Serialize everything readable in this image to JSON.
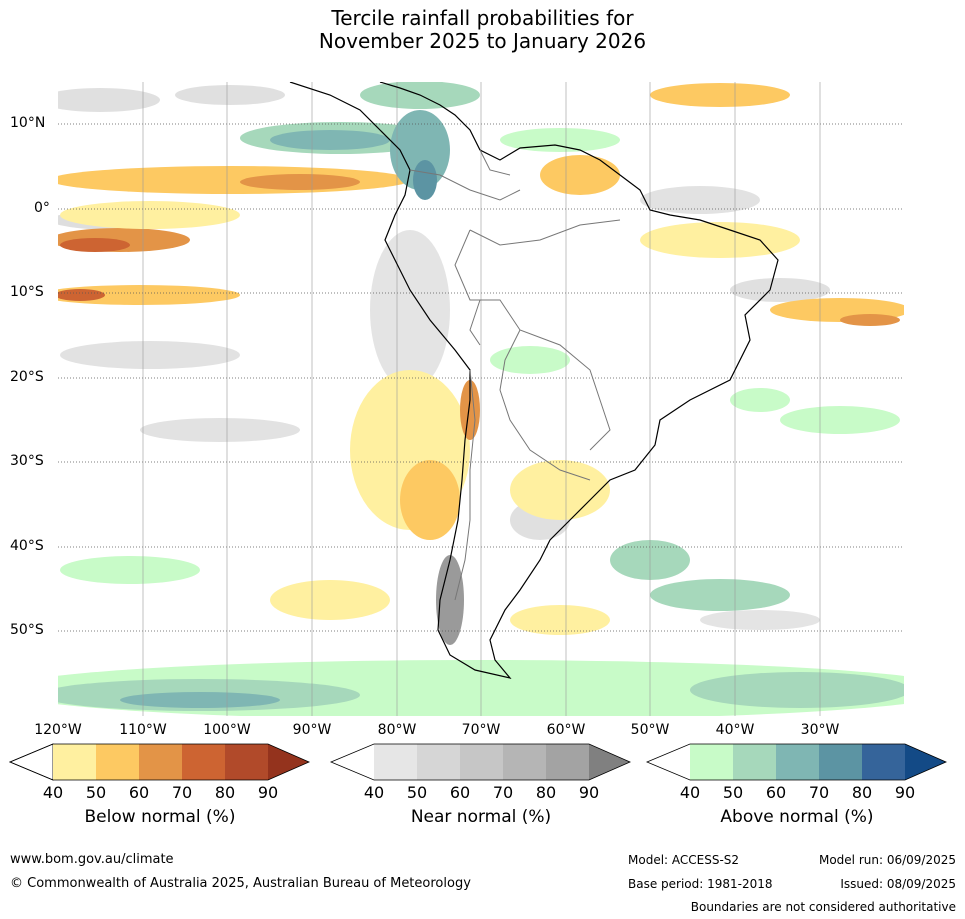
{
  "title_line1": "Tercile rainfall probabilities for",
  "title_line2": "November 2025 to January 2026",
  "longitude_labels": [
    "120°W",
    "110°W",
    "100°W",
    "90°W",
    "80°W",
    "70°W",
    "60°W",
    "50°W",
    "40°W",
    "30°W"
  ],
  "latitude_labels": [
    "10°N",
    "0°",
    "10°S",
    "20°S",
    "30°S",
    "40°S",
    "50°S"
  ],
  "colorbars": [
    {
      "label": "Below normal (%)",
      "ticks": [
        "40",
        "50",
        "60",
        "70",
        "80",
        "90"
      ],
      "colors": [
        "#fff0a0",
        "#fdc962",
        "#e39447",
        "#cd6432",
        "#b14a2a",
        "#94331d"
      ]
    },
    {
      "label": "Near normal (%)",
      "ticks": [
        "40",
        "50",
        "60",
        "70",
        "80",
        "90"
      ],
      "colors": [
        "#e6e6e6",
        "#d6d6d6",
        "#c6c6c6",
        "#b5b5b5",
        "#a3a3a3",
        "#808080"
      ]
    },
    {
      "label": "Above normal (%)",
      "ticks": [
        "40",
        "50",
        "60",
        "70",
        "80",
        "90"
      ],
      "colors": [
        "#c8fbc8",
        "#a6d8bb",
        "#7fb6b3",
        "#5c94a3",
        "#35649a",
        "#134a86"
      ]
    }
  ],
  "footer": {
    "website": "www.bom.gov.au/climate",
    "copyright": "© Commonwealth of Australia 2025, Australian Bureau of Meteorology",
    "model": "Model: ACCESS-S2",
    "base_period": "Base period: 1981-2018",
    "model_run": "Model run: 06/09/2025",
    "issued": "Issued: 08/09/2025",
    "disclaimer": "Boundaries are not considered authoritative"
  }
}
